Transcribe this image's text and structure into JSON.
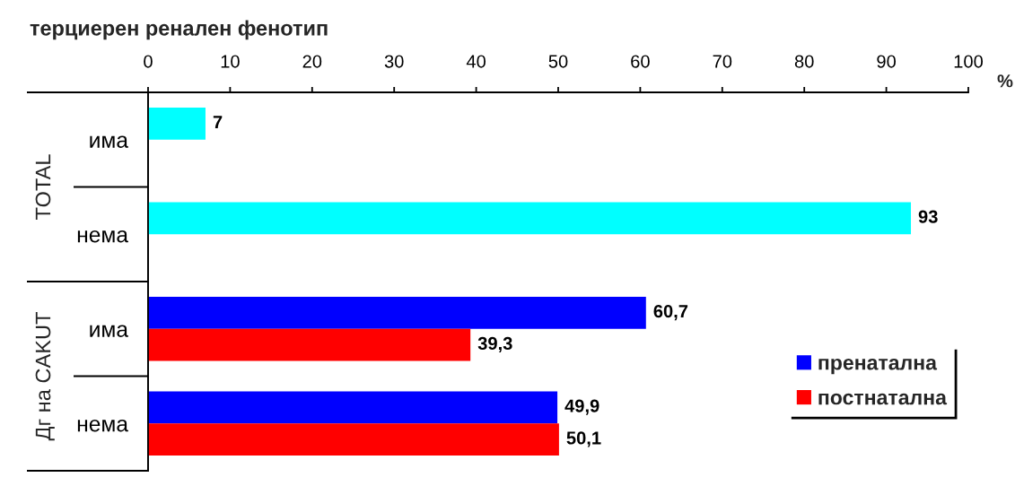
{
  "chart_data": [
    {
      "type": "bar",
      "orientation": "horizontal",
      "title": "терциерен ренален фенотип",
      "xlabel": "%",
      "ylabel": "TOTAL",
      "categories": [
        "има",
        "нема"
      ],
      "series": [
        {
          "color": "#00ffff",
          "values": [
            7,
            93
          ],
          "value_labels": [
            "7",
            "93"
          ]
        }
      ],
      "xlim": [
        0,
        100
      ],
      "xticks": [
        0,
        10,
        20,
        30,
        40,
        50,
        60,
        70,
        80,
        90,
        100
      ]
    },
    {
      "type": "bar",
      "orientation": "horizontal",
      "ylabel": "Дг на CAKUT",
      "categories": [
        "има",
        "нема"
      ],
      "series": [
        {
          "name": "пренатална",
          "color": "#0000ff",
          "values": [
            60.7,
            49.9
          ],
          "value_labels": [
            "60,7",
            "49,9"
          ]
        },
        {
          "name": "постнатална",
          "color": "#ff0000",
          "values": [
            39.3,
            50.1
          ],
          "value_labels": [
            "39,3",
            "50,1"
          ]
        }
      ],
      "xlim": [
        0,
        100
      ],
      "tick_labels": "y",
      "legend": "bottom right"
    }
  ]
}
